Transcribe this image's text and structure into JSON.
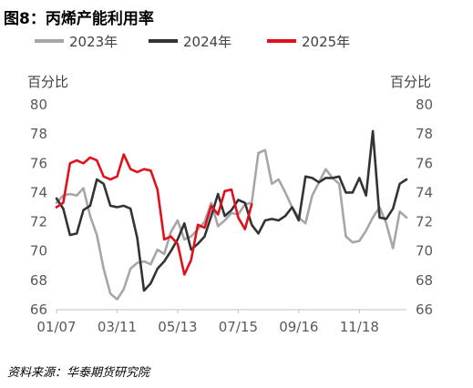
{
  "title": "图8：丙烯产能利用率",
  "source": "资料来源：华泰期货研究院",
  "chart_data": {
    "type": "line",
    "ylabel_left": "百分比",
    "ylabel_right": "百分比",
    "ylim": [
      66,
      80
    ],
    "yticks": [
      66,
      68,
      70,
      72,
      74,
      76,
      78,
      80
    ],
    "xlim": [
      0,
      52
    ],
    "xtick_labels": [
      "01/07",
      "03/11",
      "05/13",
      "07/15",
      "09/16",
      "11/18"
    ],
    "xtick_positions": [
      0,
      9,
      18,
      27,
      36,
      45
    ],
    "grid": false,
    "legend_position": "top",
    "series": [
      {
        "name": "2023年",
        "color": "#a6a6a6",
        "x": [
          0,
          1,
          2,
          3,
          4,
          5,
          6,
          7,
          8,
          9,
          10,
          11,
          12,
          13,
          14,
          15,
          16,
          17,
          18,
          19,
          20,
          21,
          22,
          23,
          24,
          25,
          26,
          27,
          28,
          29,
          30,
          31,
          32,
          33,
          34,
          35,
          36,
          37,
          38,
          39,
          40,
          41,
          42,
          43,
          44,
          45,
          46,
          47,
          48,
          49,
          50,
          51,
          52
        ],
        "values": [
          73.3,
          73.8,
          73.9,
          73.8,
          74.3,
          72.4,
          71.1,
          68.8,
          67.1,
          66.7,
          67.4,
          68.8,
          69.2,
          69.3,
          69.1,
          70.1,
          69.8,
          71.3,
          72.1,
          70.8,
          71.0,
          71.5,
          72.0,
          73.3,
          71.7,
          72.1,
          72.6,
          72.5,
          73.2,
          73.3,
          76.7,
          76.9,
          74.6,
          74.9,
          74.0,
          73.0,
          72.3,
          71.9,
          73.8,
          74.7,
          75.6,
          75.0,
          74.6,
          71.0,
          70.6,
          70.7,
          71.4,
          72.3,
          73.0,
          71.9,
          70.2,
          72.7,
          72.3
        ]
      },
      {
        "name": "2024年",
        "color": "#333333",
        "x": [
          0,
          1,
          2,
          3,
          4,
          5,
          6,
          7,
          8,
          9,
          10,
          11,
          12,
          13,
          14,
          15,
          16,
          17,
          18,
          19,
          20,
          21,
          22,
          23,
          24,
          25,
          26,
          27,
          28,
          29,
          30,
          31,
          32,
          33,
          34,
          35,
          36,
          37,
          38,
          39,
          40,
          41,
          42,
          43,
          44,
          45,
          46,
          47,
          48,
          49,
          50,
          51,
          52
        ],
        "values": [
          73.6,
          72.9,
          71.1,
          71.2,
          72.8,
          73.1,
          74.9,
          74.6,
          73.1,
          73.0,
          73.1,
          72.9,
          70.9,
          67.3,
          67.8,
          68.8,
          69.3,
          70.0,
          70.8,
          71.9,
          70.1,
          70.5,
          71.0,
          72.4,
          73.9,
          72.4,
          72.8,
          73.5,
          73.3,
          71.8,
          71.2,
          72.1,
          72.2,
          72.1,
          72.4,
          73.0,
          72.1,
          75.1,
          75.0,
          74.7,
          75.0,
          75.0,
          75.1,
          74.0,
          74.0,
          75.0,
          73.8,
          78.2,
          72.3,
          72.2,
          72.9,
          74.6,
          74.9
        ]
      },
      {
        "name": "2025年",
        "color": "#e0101c",
        "x": [
          0,
          1,
          2,
          3,
          4,
          5,
          6,
          7,
          8,
          9,
          10,
          11,
          12,
          13,
          14,
          15,
          16,
          17,
          18,
          19,
          20,
          21,
          22,
          23,
          24,
          25,
          26,
          27,
          28,
          29
        ],
        "values": [
          73.0,
          73.3,
          76.0,
          76.2,
          76.0,
          76.4,
          76.2,
          75.1,
          74.9,
          75.1,
          76.6,
          75.6,
          75.4,
          75.6,
          75.5,
          74.2,
          70.8,
          71.0,
          70.5,
          68.4,
          69.4,
          71.8,
          71.6,
          73.1,
          72.5,
          74.1,
          74.2,
          72.3,
          71.5,
          73.2
        ]
      }
    ]
  }
}
